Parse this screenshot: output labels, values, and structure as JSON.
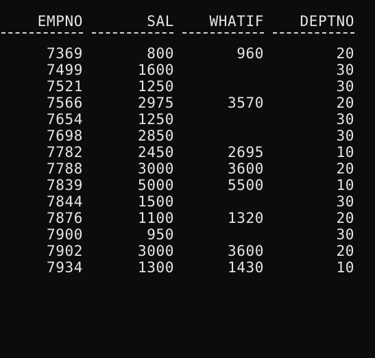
{
  "table": {
    "columns": [
      "EMPNO",
      "SAL",
      "WHATIF",
      "DEPTNO"
    ],
    "rows": [
      [
        "7369",
        "800",
        "960",
        "20"
      ],
      [
        "7499",
        "1600",
        "",
        "30"
      ],
      [
        "7521",
        "1250",
        "",
        "30"
      ],
      [
        "7566",
        "2975",
        "3570",
        "20"
      ],
      [
        "7654",
        "1250",
        "",
        "30"
      ],
      [
        "7698",
        "2850",
        "",
        "30"
      ],
      [
        "7782",
        "2450",
        "2695",
        "10"
      ],
      [
        "7788",
        "3000",
        "3600",
        "20"
      ],
      [
        "7839",
        "5000",
        "5500",
        "10"
      ],
      [
        "7844",
        "1500",
        "",
        "30"
      ],
      [
        "7876",
        "1100",
        "1320",
        "20"
      ],
      [
        "7900",
        "950",
        "",
        "30"
      ],
      [
        "7902",
        "3000",
        "3600",
        "20"
      ],
      [
        "7934",
        "1300",
        "1430",
        "10"
      ]
    ]
  },
  "colors": {
    "background": "#0c0c0c",
    "text": "#e6e6e6"
  }
}
